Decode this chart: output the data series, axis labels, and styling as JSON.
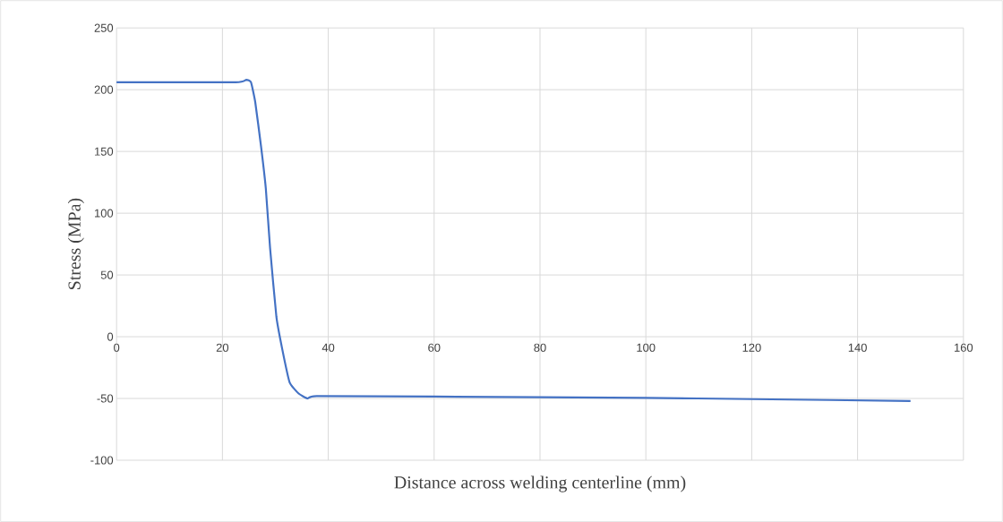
{
  "chart_data": {
    "type": "line",
    "xlabel": "Distance across welding centerline (mm)",
    "ylabel": "Stress (MPa)",
    "x": [
      0,
      22.5,
      24.5,
      25.4,
      26.2,
      27.3,
      28.2,
      29.0,
      30.2,
      31.3,
      32.7,
      34.4,
      36.1,
      37.8,
      60,
      100,
      120,
      150
    ],
    "series": [
      {
        "color": "#4472c4",
        "values": [
          206,
          206,
          208,
          206,
          190,
          154,
          120,
          72,
          16,
          -10,
          -37,
          -46,
          -50,
          -48,
          -48.5,
          -49.5,
          -50.5,
          -52
        ]
      }
    ],
    "xlim": [
      0,
      160
    ],
    "xticks": [
      0,
      20,
      40,
      60,
      80,
      100,
      120,
      140,
      160
    ],
    "ylim": [
      -100,
      250
    ],
    "yticks": [
      -100,
      -50,
      0,
      50,
      100,
      150,
      200,
      250
    ],
    "grid": true,
    "marker": "none",
    "line_style": "solid"
  }
}
